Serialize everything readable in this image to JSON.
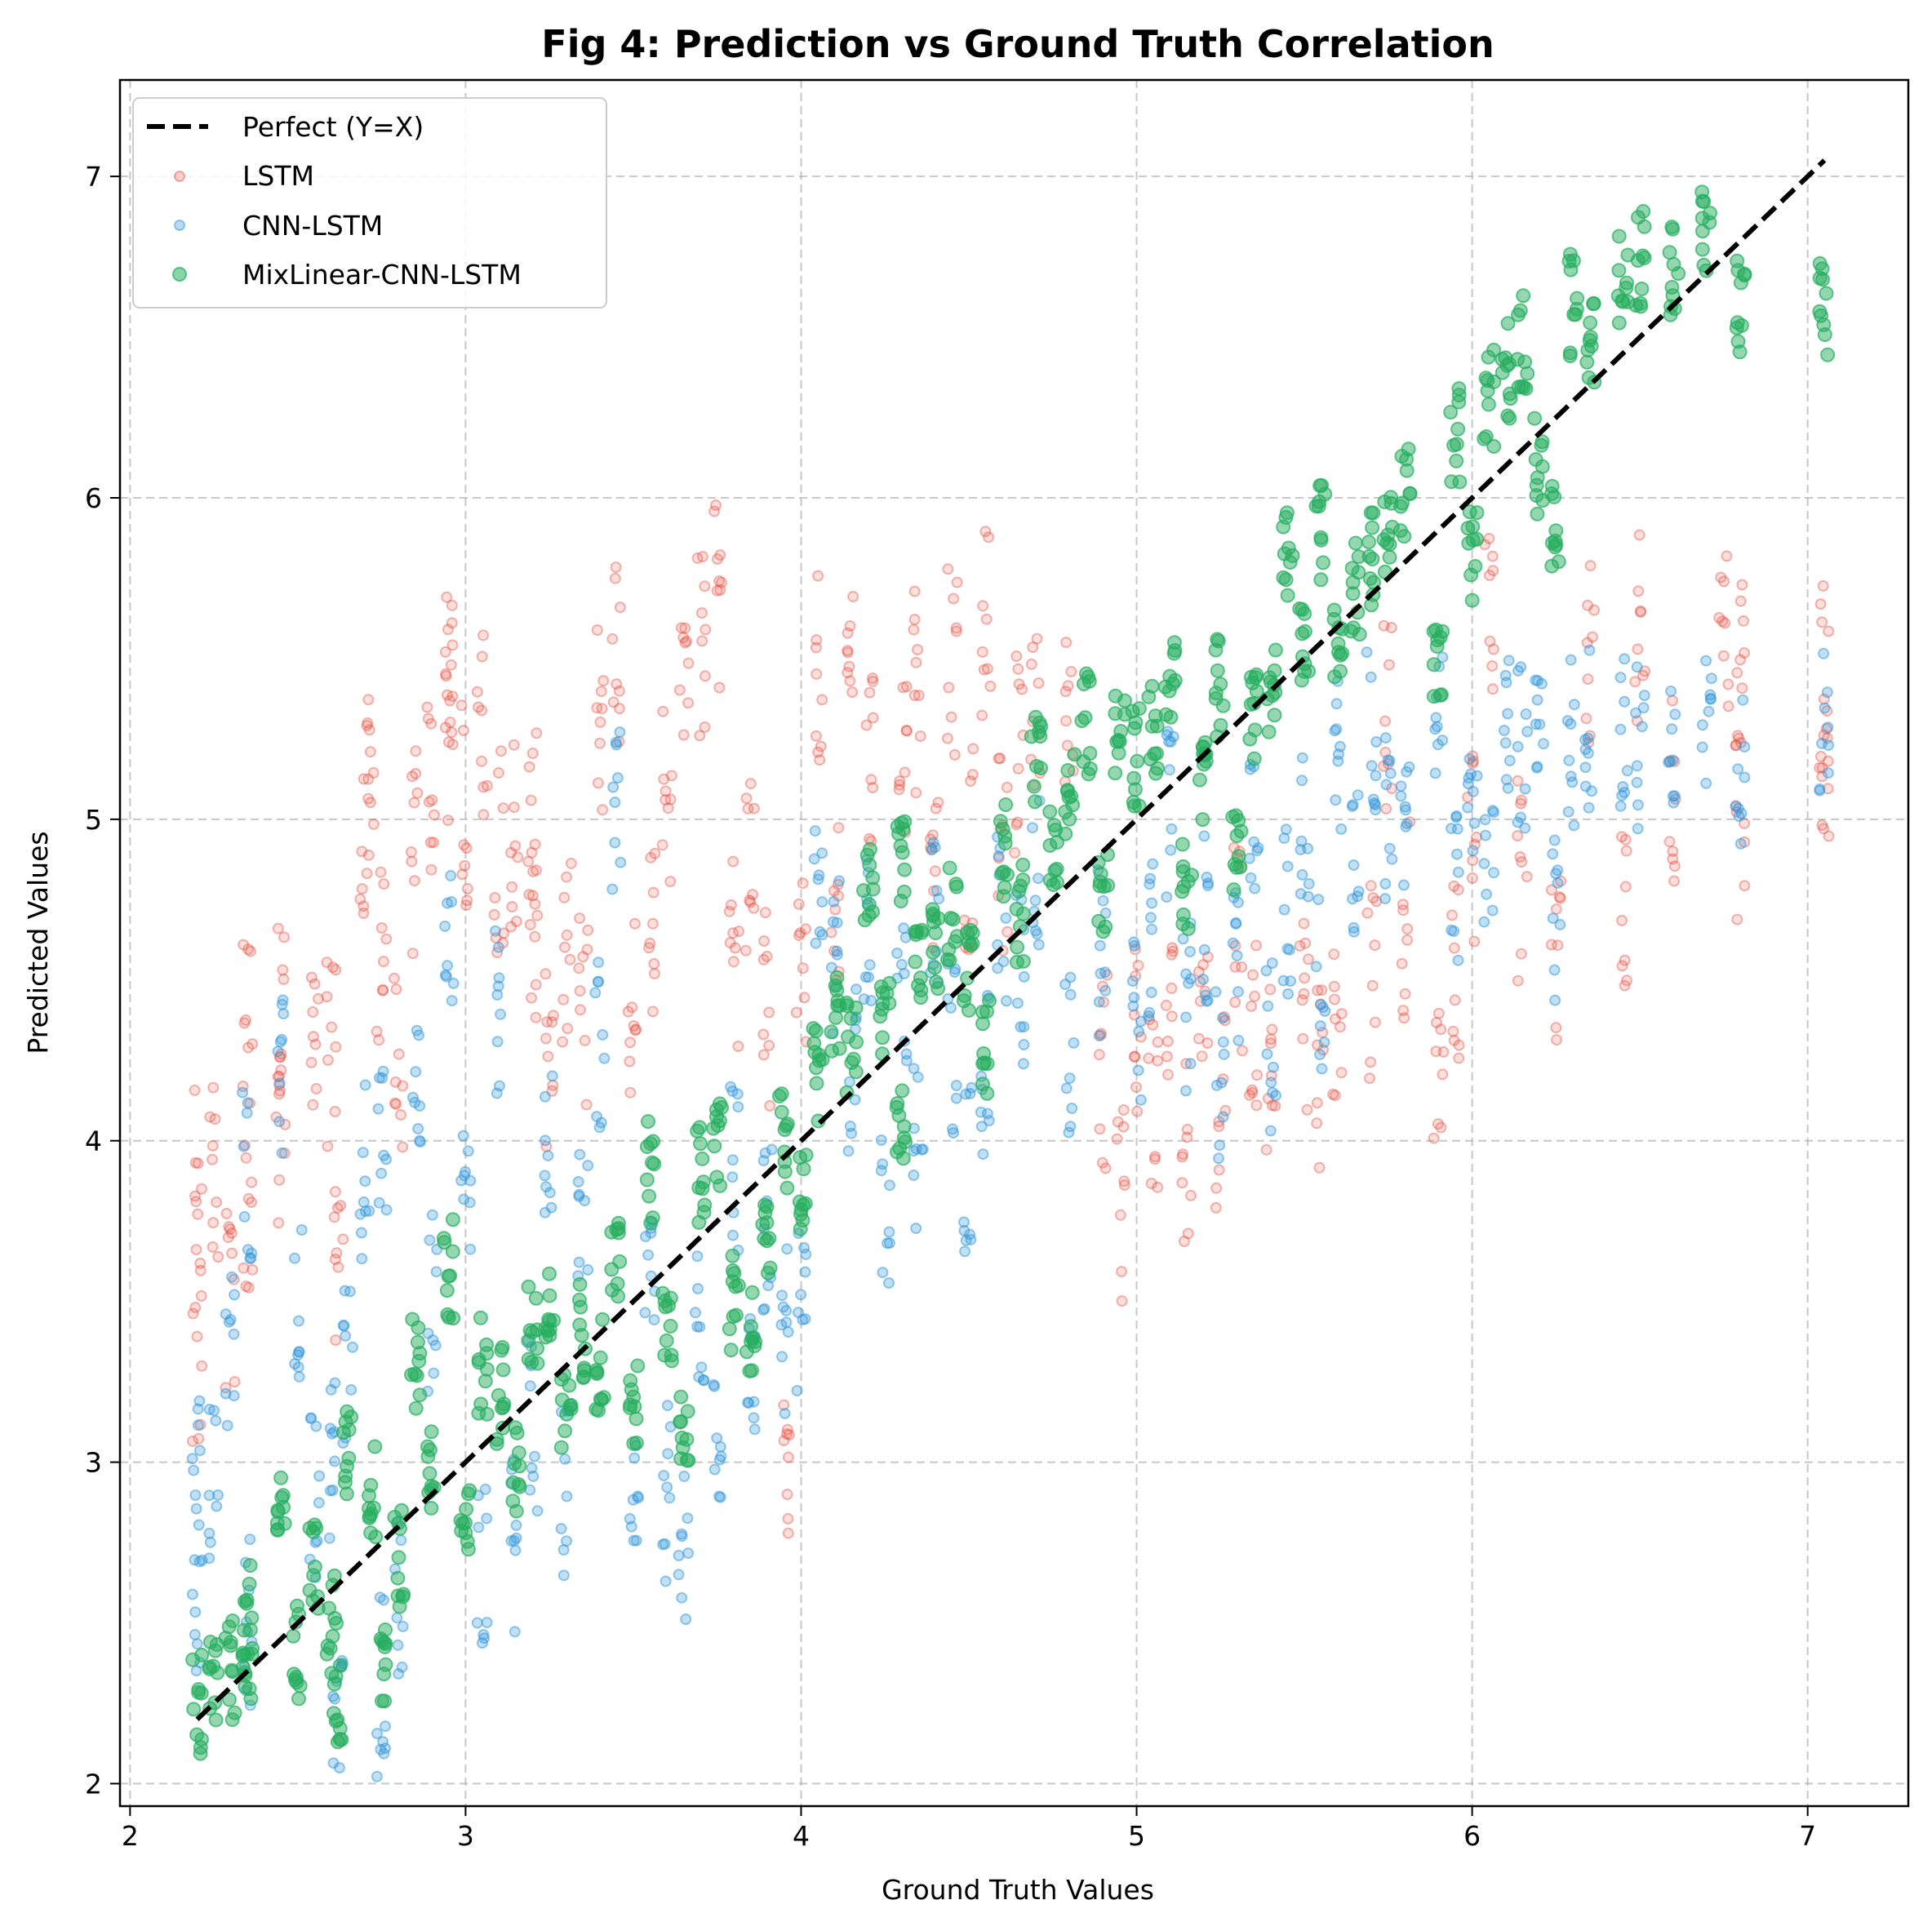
{
  "chart_data": {
    "type": "scatter",
    "title": "Fig 4: Prediction vs Ground Truth Correlation",
    "xlabel": "Ground Truth Values",
    "ylabel": "Predicted Values",
    "xlim": [
      1.97,
      7.3
    ],
    "ylim": [
      1.93,
      7.3
    ],
    "xticks": [
      2,
      3,
      4,
      5,
      6,
      7
    ],
    "yticks": [
      2,
      3,
      4,
      5,
      6,
      7
    ],
    "grid": true,
    "legend_position": "top-left",
    "reference_line": {
      "name": "Perfect (Y=X)",
      "x": [
        2.2,
        7.05
      ],
      "y": [
        2.2,
        7.05
      ],
      "color": "#000000",
      "style": "dashed"
    },
    "series": [
      {
        "name": "LSTM",
        "color": "#e74c3c",
        "points": [
          [
            2.2,
            3.85
          ],
          [
            2.2,
            3.3
          ],
          [
            2.25,
            3.9
          ],
          [
            2.3,
            3.5
          ],
          [
            2.35,
            4.3
          ],
          [
            2.35,
            3.7
          ],
          [
            2.45,
            4.4
          ],
          [
            2.45,
            3.95
          ],
          [
            2.55,
            4.25
          ],
          [
            2.6,
            4.3
          ],
          [
            2.62,
            3.6
          ],
          [
            2.7,
            5.0
          ],
          [
            2.72,
            5.2
          ],
          [
            2.75,
            4.6
          ],
          [
            2.8,
            4.2
          ],
          [
            2.85,
            4.9
          ],
          [
            2.9,
            5.1
          ],
          [
            2.95,
            5.3
          ],
          [
            2.95,
            5.5
          ],
          [
            3.0,
            5.05
          ],
          [
            3.05,
            5.3
          ],
          [
            3.1,
            4.9
          ],
          [
            3.15,
            4.95
          ],
          [
            3.2,
            5.0
          ],
          [
            3.2,
            4.7
          ],
          [
            3.25,
            4.3
          ],
          [
            3.3,
            4.6
          ],
          [
            3.35,
            4.4
          ],
          [
            3.4,
            5.3
          ],
          [
            3.45,
            5.5
          ],
          [
            3.5,
            4.4
          ],
          [
            3.55,
            4.6
          ],
          [
            3.6,
            5.1
          ],
          [
            3.65,
            5.4
          ],
          [
            3.7,
            5.5
          ],
          [
            3.75,
            5.7
          ],
          [
            3.8,
            4.6
          ],
          [
            3.85,
            4.8
          ],
          [
            3.9,
            4.4
          ],
          [
            3.95,
            3.05
          ],
          [
            4.0,
            4.5
          ],
          [
            4.05,
            5.5
          ],
          [
            4.1,
            4.7
          ],
          [
            4.15,
            5.6
          ],
          [
            4.2,
            5.2
          ],
          [
            4.3,
            5.2
          ],
          [
            4.35,
            5.4
          ],
          [
            4.4,
            4.8
          ],
          [
            4.45,
            5.5
          ],
          [
            4.5,
            4.9
          ],
          [
            4.55,
            5.6
          ],
          [
            4.6,
            4.9
          ],
          [
            4.65,
            5.2
          ],
          [
            4.7,
            5.4
          ],
          [
            4.8,
            5.3
          ],
          [
            4.9,
            4.2
          ],
          [
            4.95,
            3.8
          ],
          [
            5.0,
            4.3
          ],
          [
            5.05,
            4.1
          ],
          [
            5.1,
            4.5
          ],
          [
            5.15,
            4.0
          ],
          [
            5.2,
            4.3
          ],
          [
            5.25,
            4.1
          ],
          [
            5.3,
            4.6
          ],
          [
            5.35,
            4.4
          ],
          [
            5.4,
            4.2
          ],
          [
            5.5,
            4.4
          ],
          [
            5.55,
            4.15
          ],
          [
            5.6,
            4.3
          ],
          [
            5.7,
            4.5
          ],
          [
            5.75,
            5.3
          ],
          [
            5.8,
            4.7
          ],
          [
            5.9,
            4.3
          ],
          [
            5.95,
            4.5
          ],
          [
            6.0,
            4.9
          ],
          [
            6.05,
            5.6
          ],
          [
            6.15,
            4.8
          ],
          [
            6.25,
            4.6
          ],
          [
            6.35,
            5.5
          ],
          [
            6.45,
            4.8
          ],
          [
            6.5,
            5.6
          ],
          [
            6.6,
            5.05
          ],
          [
            6.75,
            5.6
          ],
          [
            6.8,
            5.55
          ],
          [
            6.8,
            4.92
          ],
          [
            7.05,
            5.45
          ],
          [
            7.05,
            5.1
          ]
        ]
      },
      {
        "name": "CNN-LSTM",
        "color": "#3498db",
        "points": [
          [
            2.2,
            2.6
          ],
          [
            2.2,
            3.0
          ],
          [
            2.25,
            2.9
          ],
          [
            2.3,
            3.3
          ],
          [
            2.35,
            2.5
          ],
          [
            2.35,
            3.9
          ],
          [
            2.45,
            4.2
          ],
          [
            2.5,
            3.5
          ],
          [
            2.55,
            2.9
          ],
          [
            2.6,
            3.0
          ],
          [
            2.62,
            2.2
          ],
          [
            2.65,
            3.3
          ],
          [
            2.7,
            3.9
          ],
          [
            2.75,
            4.0
          ],
          [
            2.75,
            2.3
          ],
          [
            2.8,
            2.55
          ],
          [
            2.85,
            4.25
          ],
          [
            2.9,
            3.5
          ],
          [
            2.95,
            4.6
          ],
          [
            3.0,
            3.9
          ],
          [
            3.05,
            2.65
          ],
          [
            3.1,
            4.4
          ],
          [
            3.15,
            2.75
          ],
          [
            3.2,
            3.1
          ],
          [
            3.25,
            4.0
          ],
          [
            3.3,
            2.9
          ],
          [
            3.35,
            3.8
          ],
          [
            3.4,
            4.3
          ],
          [
            3.45,
            5.0
          ],
          [
            3.5,
            2.9
          ],
          [
            3.55,
            3.6
          ],
          [
            3.6,
            2.9
          ],
          [
            3.65,
            2.75
          ],
          [
            3.7,
            3.5
          ],
          [
            3.75,
            3.0
          ],
          [
            3.8,
            3.9
          ],
          [
            3.85,
            3.2
          ],
          [
            3.9,
            3.7
          ],
          [
            3.95,
            3.4
          ],
          [
            4.0,
            3.5
          ],
          [
            4.05,
            4.8
          ],
          [
            4.1,
            4.6
          ],
          [
            4.15,
            4.2
          ],
          [
            4.2,
            4.6
          ],
          [
            4.25,
            3.8
          ],
          [
            4.3,
            4.5
          ],
          [
            4.35,
            4.0
          ],
          [
            4.4,
            4.7
          ],
          [
            4.45,
            4.3
          ],
          [
            4.5,
            3.9
          ],
          [
            4.55,
            4.2
          ],
          [
            4.6,
            4.7
          ],
          [
            4.65,
            4.5
          ],
          [
            4.7,
            4.8
          ],
          [
            4.8,
            4.3
          ],
          [
            4.9,
            4.6
          ],
          [
            5.0,
            4.4
          ],
          [
            5.05,
            4.6
          ],
          [
            5.1,
            5.0
          ],
          [
            5.15,
            4.4
          ],
          [
            5.2,
            4.7
          ],
          [
            5.25,
            4.2
          ],
          [
            5.3,
            4.5
          ],
          [
            5.35,
            4.9
          ],
          [
            5.4,
            4.3
          ],
          [
            5.45,
            4.7
          ],
          [
            5.5,
            5.0
          ],
          [
            5.55,
            4.5
          ],
          [
            5.6,
            5.2
          ],
          [
            5.65,
            4.8
          ],
          [
            5.7,
            5.3
          ],
          [
            5.75,
            5.0
          ],
          [
            5.8,
            4.9
          ],
          [
            5.9,
            5.3
          ],
          [
            5.95,
            4.8
          ],
          [
            6.0,
            5.0
          ],
          [
            6.05,
            4.9
          ],
          [
            6.1,
            5.3
          ],
          [
            6.15,
            5.2
          ],
          [
            6.2,
            5.4
          ],
          [
            6.25,
            4.7
          ],
          [
            6.3,
            5.25
          ],
          [
            6.35,
            5.3
          ],
          [
            6.45,
            5.3
          ],
          [
            6.5,
            5.2
          ],
          [
            6.6,
            5.3
          ],
          [
            6.7,
            5.3
          ],
          [
            6.8,
            5.2
          ],
          [
            7.05,
            5.3
          ]
        ]
      },
      {
        "name": "MixLinear-CNN-LSTM",
        "color": "#27ae60",
        "points": [
          [
            2.2,
            2.25
          ],
          [
            2.25,
            2.3
          ],
          [
            2.3,
            2.35
          ],
          [
            2.35,
            2.4
          ],
          [
            2.35,
            2.55
          ],
          [
            2.45,
            2.9
          ],
          [
            2.5,
            2.4
          ],
          [
            2.55,
            2.7
          ],
          [
            2.6,
            2.5
          ],
          [
            2.62,
            2.25
          ],
          [
            2.65,
            3.05
          ],
          [
            2.72,
            2.9
          ],
          [
            2.75,
            2.4
          ],
          [
            2.8,
            2.7
          ],
          [
            2.85,
            3.3
          ],
          [
            2.9,
            3.0
          ],
          [
            2.95,
            3.6
          ],
          [
            3.0,
            2.8
          ],
          [
            3.05,
            3.3
          ],
          [
            3.1,
            3.2
          ],
          [
            3.15,
            3.0
          ],
          [
            3.2,
            3.4
          ],
          [
            3.25,
            3.5
          ],
          [
            3.3,
            3.2
          ],
          [
            3.35,
            3.4
          ],
          [
            3.4,
            3.3
          ],
          [
            3.45,
            3.6
          ],
          [
            3.5,
            3.2
          ],
          [
            3.55,
            3.9
          ],
          [
            3.6,
            3.4
          ],
          [
            3.65,
            3.1
          ],
          [
            3.7,
            3.9
          ],
          [
            3.75,
            4.0
          ],
          [
            3.8,
            3.5
          ],
          [
            3.85,
            3.4
          ],
          [
            3.9,
            3.7
          ],
          [
            3.95,
            4.0
          ],
          [
            4.0,
            3.8
          ],
          [
            4.05,
            4.2
          ],
          [
            4.1,
            4.4
          ],
          [
            4.15,
            4.3
          ],
          [
            4.2,
            4.8
          ],
          [
            4.25,
            4.4
          ],
          [
            4.3,
            4.0
          ],
          [
            4.3,
            4.9
          ],
          [
            4.35,
            4.5
          ],
          [
            4.4,
            4.6
          ],
          [
            4.45,
            4.7
          ],
          [
            4.5,
            4.5
          ],
          [
            4.55,
            4.3
          ],
          [
            4.6,
            4.9
          ],
          [
            4.65,
            4.7
          ],
          [
            4.7,
            5.2
          ],
          [
            4.75,
            4.9
          ],
          [
            4.8,
            5.1
          ],
          [
            4.85,
            5.3
          ],
          [
            4.9,
            4.8
          ],
          [
            4.95,
            5.3
          ],
          [
            5.0,
            5.2
          ],
          [
            5.05,
            5.3
          ],
          [
            5.1,
            5.4
          ],
          [
            5.15,
            4.8
          ],
          [
            5.2,
            5.1
          ],
          [
            5.25,
            5.4
          ],
          [
            5.3,
            4.9
          ],
          [
            5.35,
            5.3
          ],
          [
            5.4,
            5.4
          ],
          [
            5.45,
            5.8
          ],
          [
            5.5,
            5.5
          ],
          [
            5.55,
            5.9
          ],
          [
            5.6,
            5.6
          ],
          [
            5.65,
            5.7
          ],
          [
            5.7,
            5.8
          ],
          [
            5.75,
            5.9
          ],
          [
            5.8,
            6.0
          ],
          [
            5.9,
            5.5
          ],
          [
            5.95,
            6.2
          ],
          [
            6.0,
            5.8
          ],
          [
            6.05,
            6.3
          ],
          [
            6.1,
            6.4
          ],
          [
            6.15,
            6.5
          ],
          [
            6.2,
            6.1
          ],
          [
            6.25,
            5.9
          ],
          [
            6.3,
            6.6
          ],
          [
            6.35,
            6.5
          ],
          [
            6.45,
            6.7
          ],
          [
            6.5,
            6.75
          ],
          [
            6.6,
            6.7
          ],
          [
            6.7,
            6.8
          ],
          [
            6.8,
            6.6
          ],
          [
            7.05,
            6.6
          ]
        ]
      }
    ]
  }
}
